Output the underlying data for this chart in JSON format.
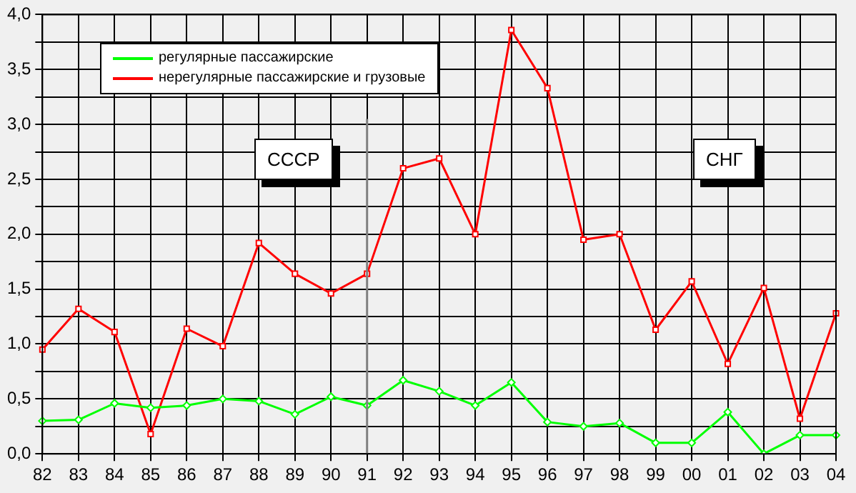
{
  "chart_data": {
    "type": "line",
    "categories": [
      "82",
      "83",
      "84",
      "85",
      "86",
      "87",
      "88",
      "89",
      "90",
      "91",
      "92",
      "93",
      "94",
      "95",
      "96",
      "97",
      "98",
      "99",
      "00",
      "01",
      "02",
      "03",
      "04"
    ],
    "series": [
      {
        "name": "регулярные пассажирские",
        "color": "#00ff00",
        "marker": "diamond",
        "values": [
          0.3,
          0.31,
          0.46,
          0.42,
          0.44,
          0.5,
          0.48,
          0.36,
          0.52,
          0.44,
          0.67,
          0.57,
          0.44,
          0.65,
          0.29,
          0.25,
          0.28,
          0.1,
          0.1,
          0.38,
          0.0,
          0.17,
          0.17
        ]
      },
      {
        "name": "нерегулярные пассажирские и грузовые",
        "color": "#ff0000",
        "marker": "square",
        "values": [
          0.95,
          1.32,
          1.11,
          0.18,
          1.14,
          0.98,
          1.92,
          1.64,
          1.46,
          1.64,
          2.6,
          2.69,
          2.0,
          3.86,
          3.33,
          1.95,
          2.0,
          1.13,
          1.57,
          0.82,
          1.51,
          0.32,
          1.28
        ]
      }
    ],
    "ylim": [
      0,
      4
    ],
    "yticks": [
      {
        "value": 0,
        "label": "0,0"
      },
      {
        "value": 0.25,
        "label": null
      },
      {
        "value": 0.5,
        "label": "0,5"
      },
      {
        "value": 0.75,
        "label": null
      },
      {
        "value": 1,
        "label": "1,0"
      },
      {
        "value": 1.25,
        "label": null
      },
      {
        "value": 1.5,
        "label": "1,5"
      },
      {
        "value": 1.75,
        "label": null
      },
      {
        "value": 2,
        "label": "2,0"
      },
      {
        "value": 2.25,
        "label": null
      },
      {
        "value": 2.5,
        "label": "2,5"
      },
      {
        "value": 2.75,
        "label": null
      },
      {
        "value": 3,
        "label": "3,0"
      },
      {
        "value": 3.25,
        "label": null
      },
      {
        "value": 3.5,
        "label": "3,5"
      },
      {
        "value": 3.75,
        "label": null
      },
      {
        "value": 4,
        "label": "4,0"
      }
    ],
    "ref_lines": [
      {
        "axis": "x",
        "value": "91",
        "color": "#808080"
      }
    ],
    "annotations": [
      "СССР",
      "СНГ"
    ],
    "grid": true,
    "legend": "top left",
    "line_style": "solid"
  }
}
